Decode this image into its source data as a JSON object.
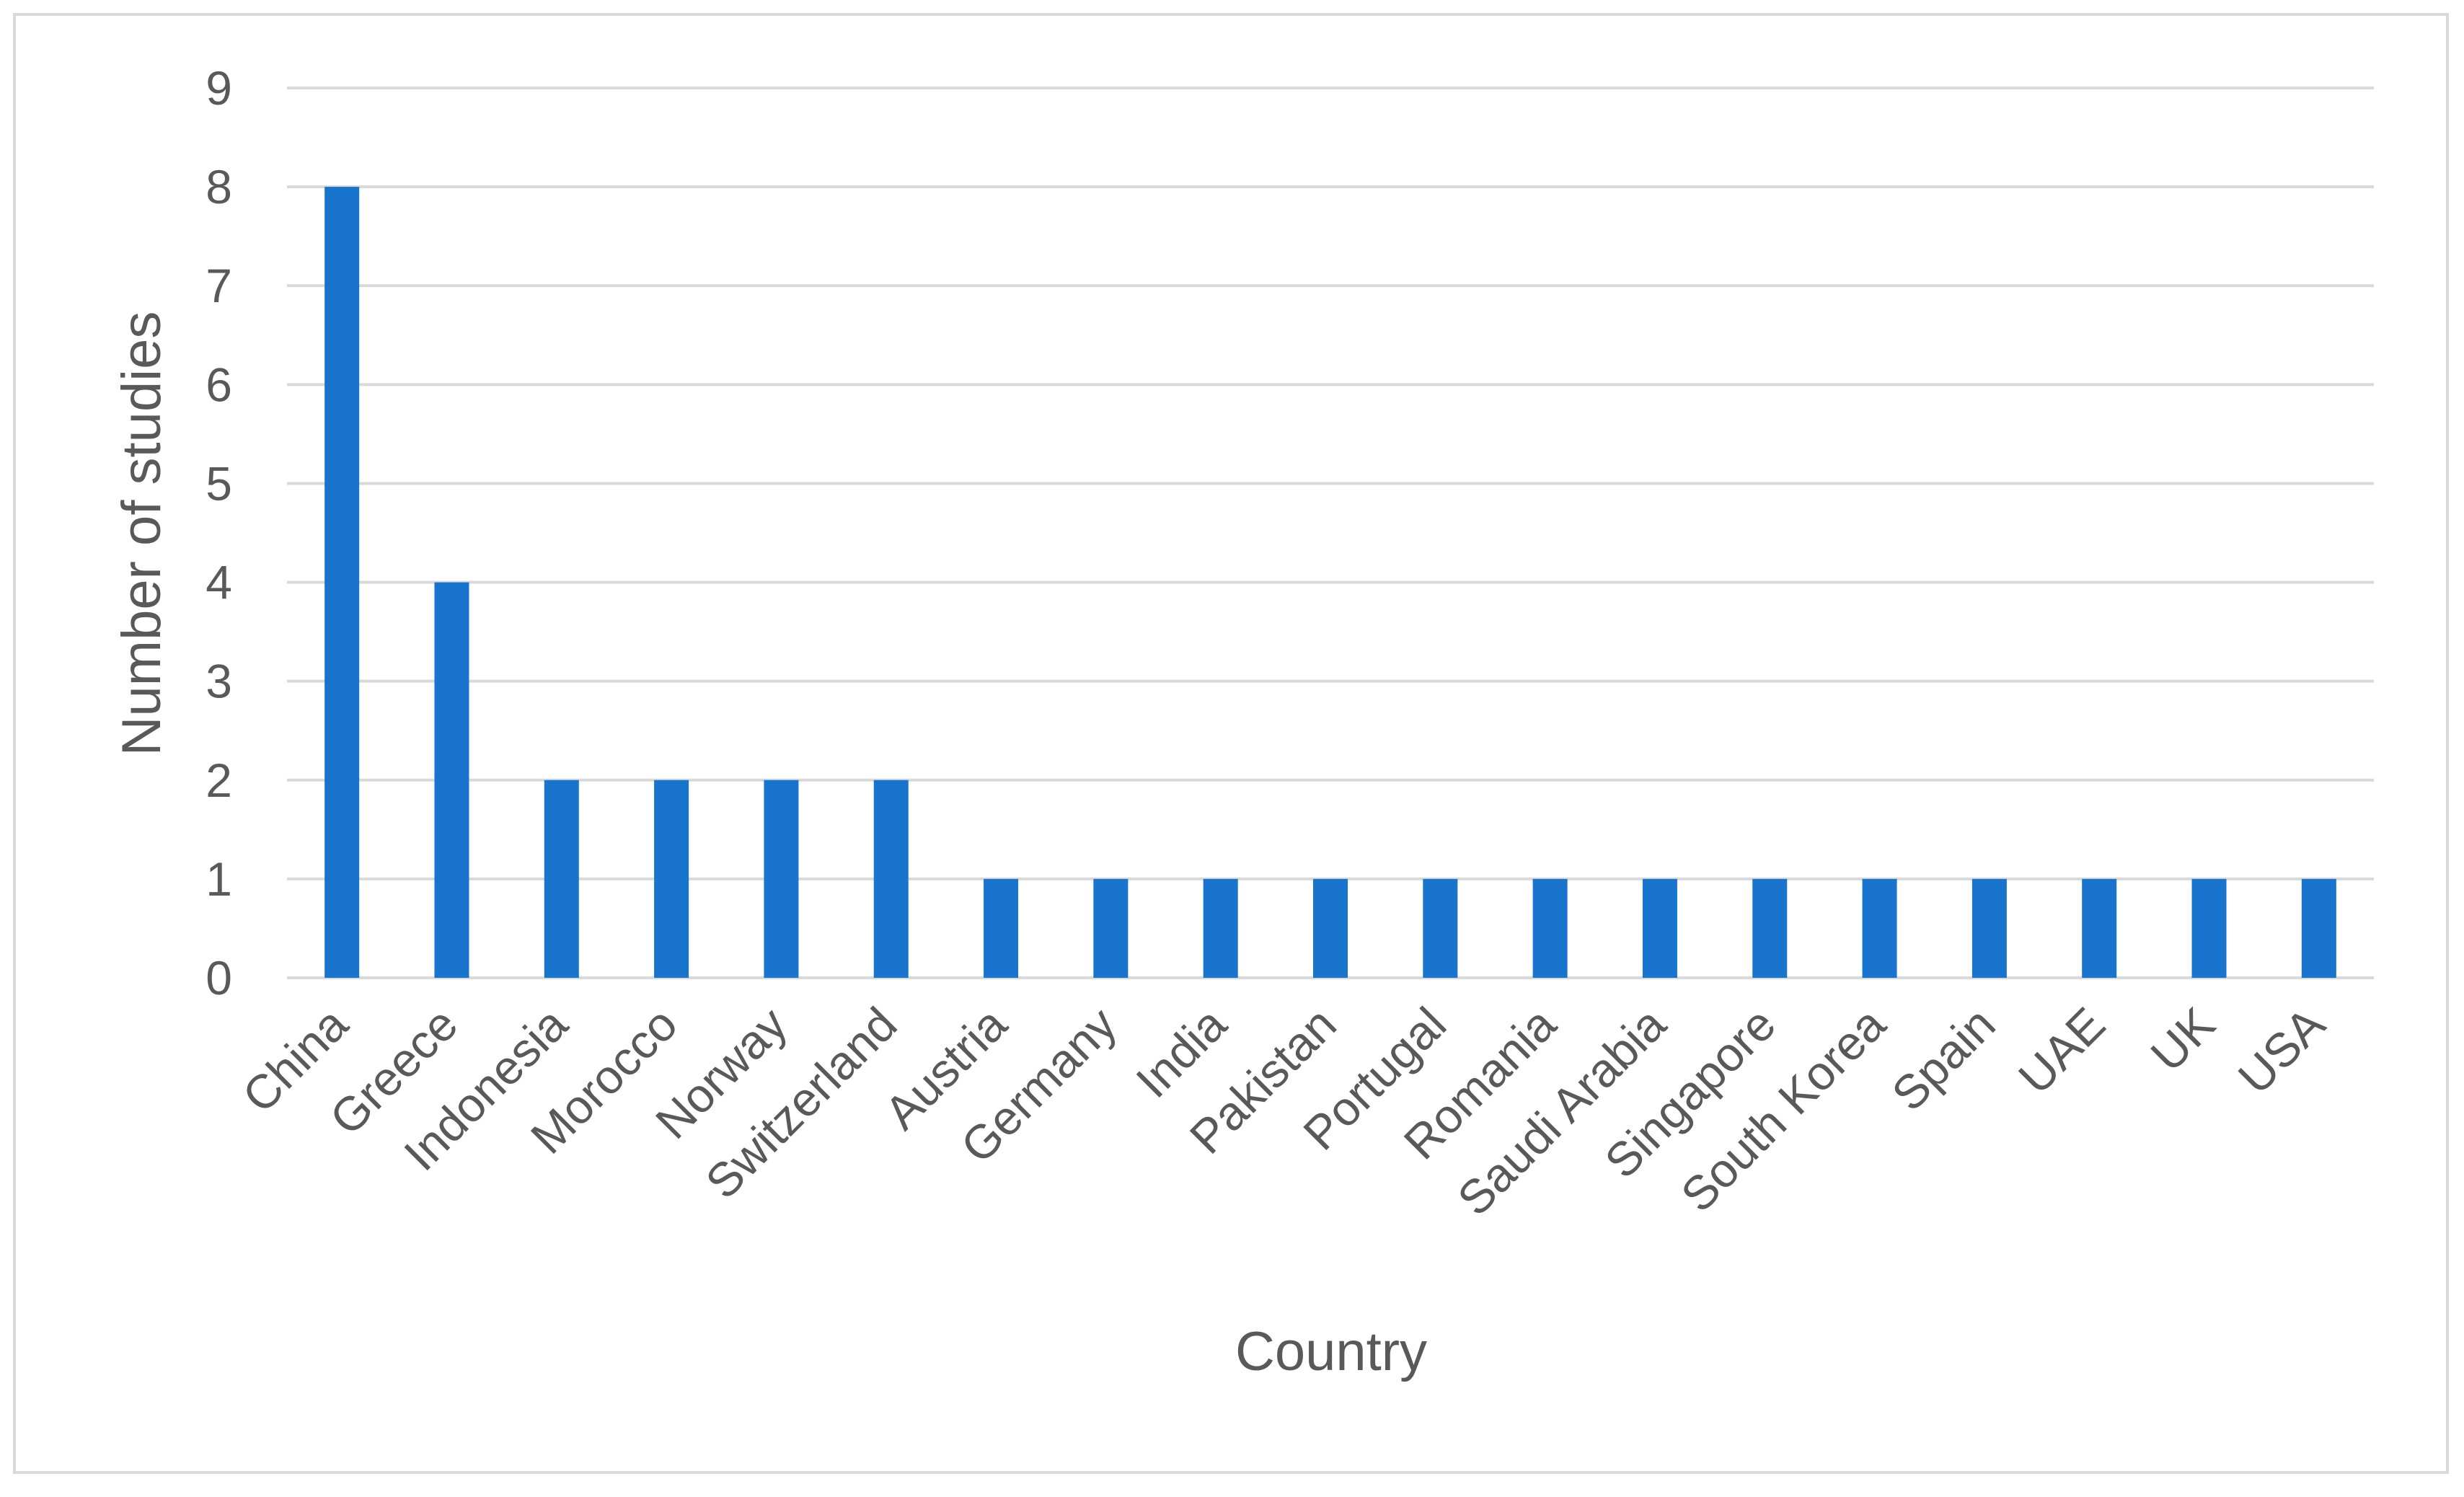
{
  "chart_data": {
    "type": "bar",
    "title": "",
    "xlabel": "Country",
    "ylabel": "Number of studies",
    "categories": [
      "China",
      "Greece",
      "Indonesia",
      "Morocco",
      "Norway",
      "Switzerland",
      "Austria",
      "Germany",
      "India",
      "Pakistan",
      "Portugal",
      "Romania",
      "Saudi Arabia",
      "Singapore",
      "South Korea",
      "Spain",
      "UAE",
      "UK",
      "USA"
    ],
    "values": [
      8,
      4,
      2,
      2,
      2,
      2,
      1,
      1,
      1,
      1,
      1,
      1,
      1,
      1,
      1,
      1,
      1,
      1,
      1
    ],
    "ylim": [
      0,
      9
    ],
    "yticks": [
      "0",
      "1",
      "2",
      "3",
      "4",
      "5",
      "6",
      "7",
      "8",
      "9"
    ],
    "grid": true,
    "legend": "none",
    "bar_color": "#1874CD",
    "grid_color": "#d9d9d9",
    "text_color": "#595959"
  }
}
